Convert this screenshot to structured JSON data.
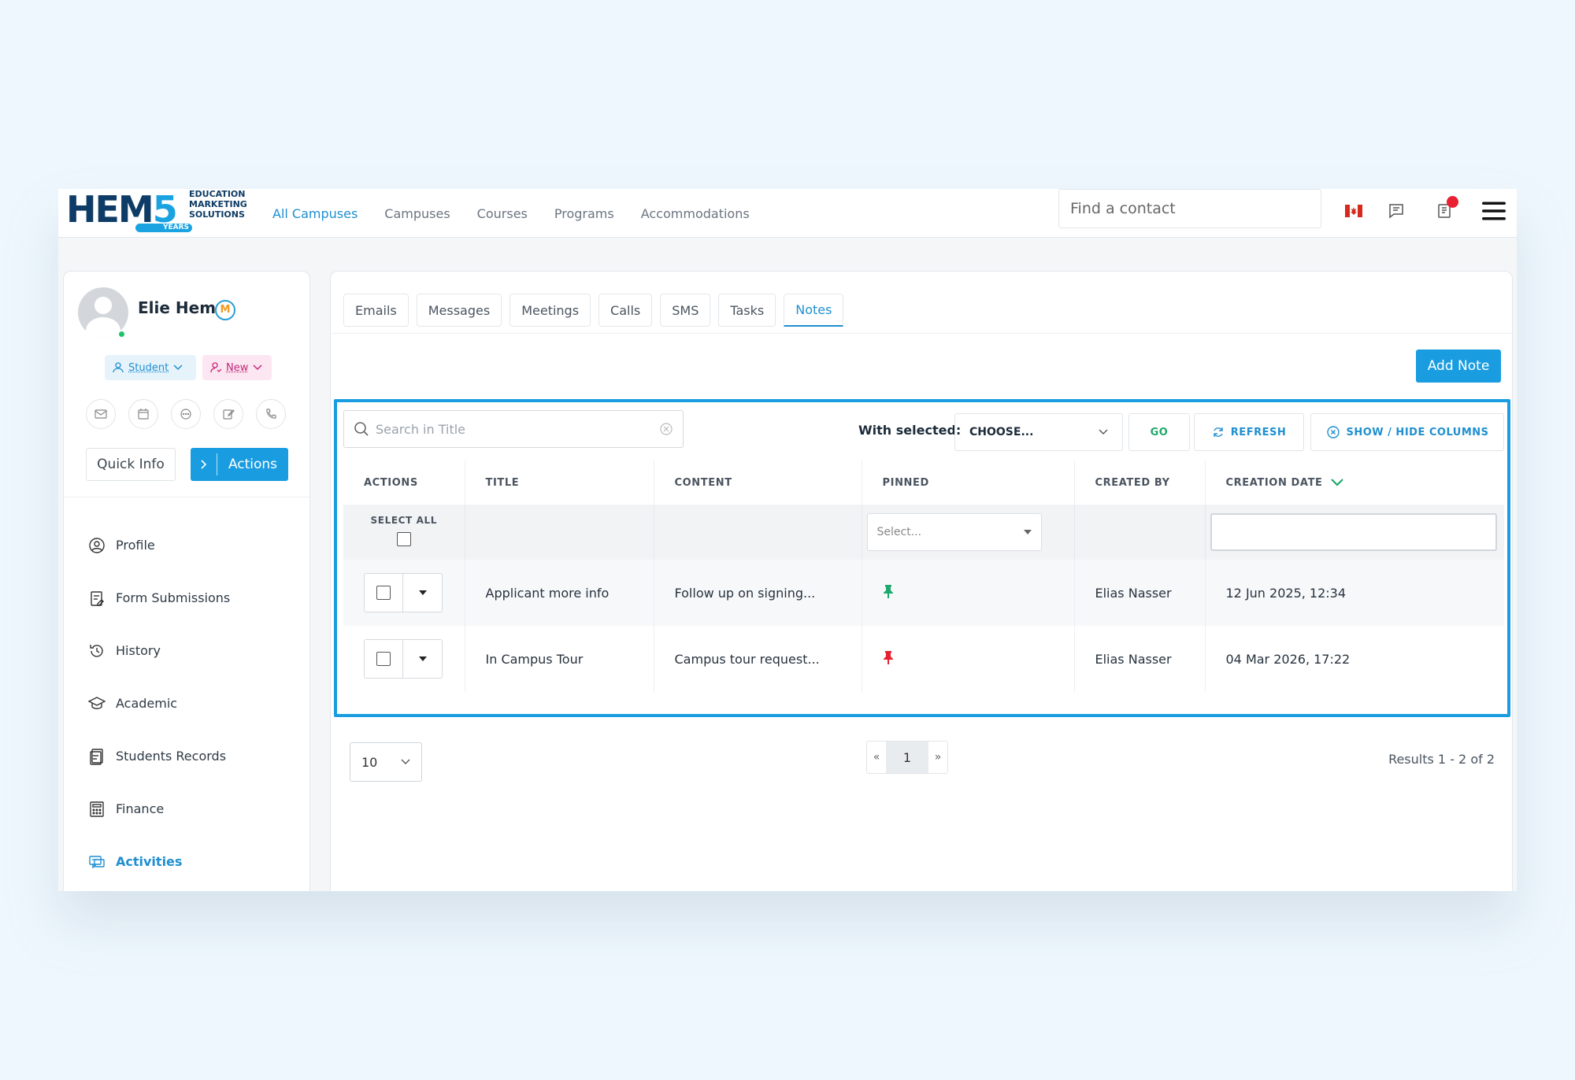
{
  "brand": {
    "logo_big": "HEM",
    "logo_five": "5",
    "logo_small_1": "EDUCATION",
    "logo_small_2": "MARKETING",
    "logo_small_3": "SOLUTIONS",
    "logo_years": "YEARS"
  },
  "nav": {
    "items": [
      "All Campuses",
      "Campuses",
      "Courses",
      "Programs",
      "Accommodations"
    ],
    "find_placeholder": "Find a contact"
  },
  "profile": {
    "name": "Elie Hem",
    "badge": "M",
    "tag_type": "Student",
    "tag_status": "New",
    "quick_info": "Quick Info",
    "actions": "Actions"
  },
  "menu": {
    "items": [
      "Profile",
      "Form Submissions",
      "History",
      "Academic",
      "Students Records",
      "Finance",
      "Activities"
    ],
    "active": "Activities"
  },
  "tabs": {
    "items": [
      "Emails",
      "Messages",
      "Meetings",
      "Calls",
      "SMS",
      "Tasks",
      "Notes"
    ],
    "active": "Notes"
  },
  "toolbar": {
    "add_note": "Add Note",
    "search_placeholder": "Search in Title",
    "with_selected": "With selected:",
    "choose": "CHOOSE...",
    "go": "GO",
    "refresh": "REFRESH",
    "show_hide": "SHOW / HIDE COLUMNS"
  },
  "table": {
    "headers": [
      "ACTIONS",
      "TITLE",
      "CONTENT",
      "PINNED",
      "CREATED BY",
      "CREATION DATE"
    ],
    "select_all": "SELECT ALL",
    "pinned_placeholder": "Select...",
    "rows": [
      {
        "title": "Applicant more info",
        "content": "Follow up on signing...",
        "pin_color": "#1fa86b",
        "created_by": "Elias Nasser",
        "date": "12 Jun 2025, 12:34"
      },
      {
        "title": "In Campus Tour",
        "content": "Campus tour request...",
        "pin_color": "#e8202f",
        "created_by": "Elias Nasser",
        "date": "04 Mar 2026, 17:22"
      }
    ]
  },
  "footer": {
    "per_page": "10",
    "prev": "«",
    "page": "1",
    "next": "»",
    "results": "Results 1 - 2 of 2"
  },
  "colors": {
    "accent": "#1a9de0",
    "highlight_border": "#1a9de0",
    "notif_dot": "#e8202f"
  }
}
